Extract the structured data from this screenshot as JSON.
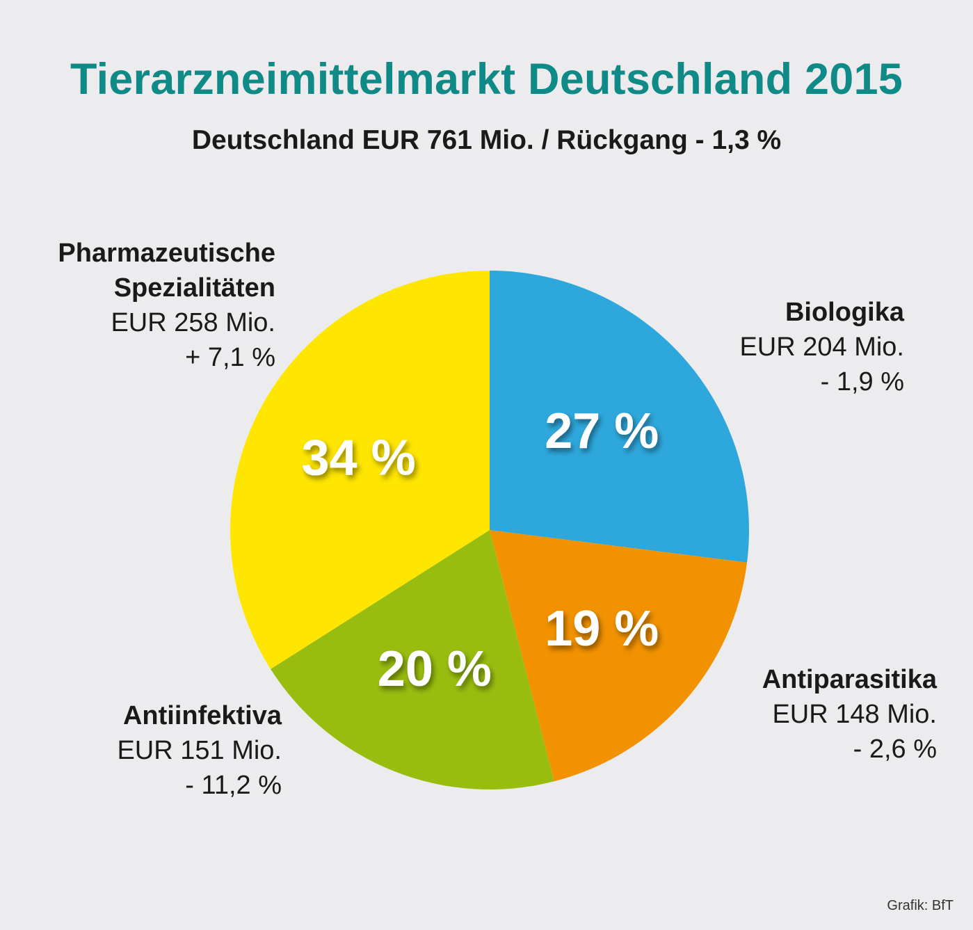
{
  "header": {
    "title": "Tierarzneimittelmarkt Deutschland 2015",
    "subtitle": "Deutschland EUR 761 Mio. / Rückgang - 1,3 %"
  },
  "chart_data": {
    "type": "pie",
    "title": "Tierarzneimittelmarkt Deutschland 2015",
    "subtitle": "Deutschland EUR 761 Mio. / Rückgang - 1,3 %",
    "slices": [
      {
        "name_lines": [
          "Biologika"
        ],
        "amount": "EUR 204 Mio.",
        "change": "- 1,9 %",
        "share": 27,
        "share_label": "27 %",
        "color": "#2ea8dc"
      },
      {
        "name_lines": [
          "Antiparasitika"
        ],
        "amount": "EUR 148 Mio.",
        "change": "- 2,6 %",
        "share": 19,
        "share_label": "19 %",
        "color": "#f29200"
      },
      {
        "name_lines": [
          "Antiinfektiva"
        ],
        "amount": "EUR 151 Mio.",
        "change": "- 11,2 %",
        "share": 20,
        "share_label": "20 %",
        "color": "#99bd0f"
      },
      {
        "name_lines": [
          "Pharmazeutische",
          "Spezialitäten"
        ],
        "amount": "EUR 258 Mio.",
        "change": "+ 7,1 %",
        "share": 34,
        "share_label": "34 %",
        "color": "#ffe600"
      }
    ]
  },
  "footer": {
    "credit": "Grafik: BfT"
  }
}
